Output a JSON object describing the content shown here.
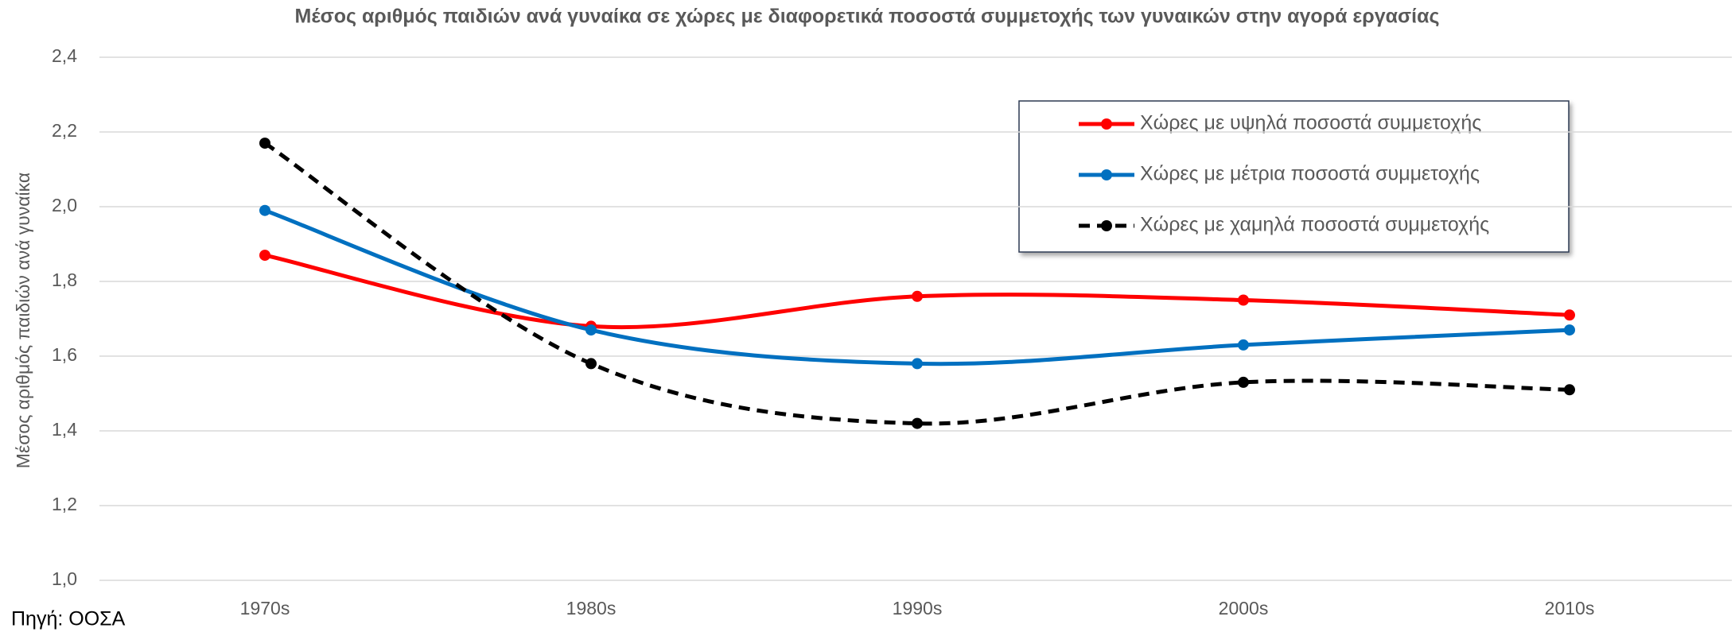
{
  "chart_data": {
    "type": "line",
    "title": "Μέσος αριθμός παιδιών ανά γυναίκα σε χώρες με διαφορετικά ποσοστά συμμετοχής των γυναικών στην αγορά εργασίας",
    "ylabel": "Μέσος αριθμός παιδιών ανά γυναίκα",
    "source": "Πηγή: ΟΟΣΑ",
    "categories": [
      "1970s",
      "1980s",
      "1990s",
      "2000s",
      "2010s"
    ],
    "series": [
      {
        "name": "Χώρες με υψηλά ποσοστά συμμετοχής",
        "color": "#ff0000",
        "linestyle": "solid",
        "values": [
          1.87,
          1.68,
          1.76,
          1.75,
          1.71
        ]
      },
      {
        "name": "Χώρες με μέτρια ποσοστά συμμετοχής",
        "color": "#0070c0",
        "linestyle": "solid",
        "values": [
          1.99,
          1.67,
          1.58,
          1.63,
          1.67
        ]
      },
      {
        "name": "Χώρες με χαμηλά ποσοστά συμμετοχής",
        "color": "#000000",
        "linestyle": "dashed",
        "values": [
          2.17,
          1.58,
          1.42,
          1.53,
          1.51
        ]
      }
    ],
    "ylim": [
      1.0,
      2.4
    ],
    "yticks": [
      {
        "value": 1.0,
        "label": "1,0"
      },
      {
        "value": 1.2,
        "label": "1,2"
      },
      {
        "value": 1.4,
        "label": "1,4"
      },
      {
        "value": 1.6,
        "label": "1,6"
      },
      {
        "value": 1.8,
        "label": "1,8"
      },
      {
        "value": 2.0,
        "label": "2,0"
      },
      {
        "value": 2.2,
        "label": "2,2"
      },
      {
        "value": 2.4,
        "label": "2,4"
      }
    ],
    "grid": true,
    "smooth": true,
    "legend": "upper right"
  }
}
